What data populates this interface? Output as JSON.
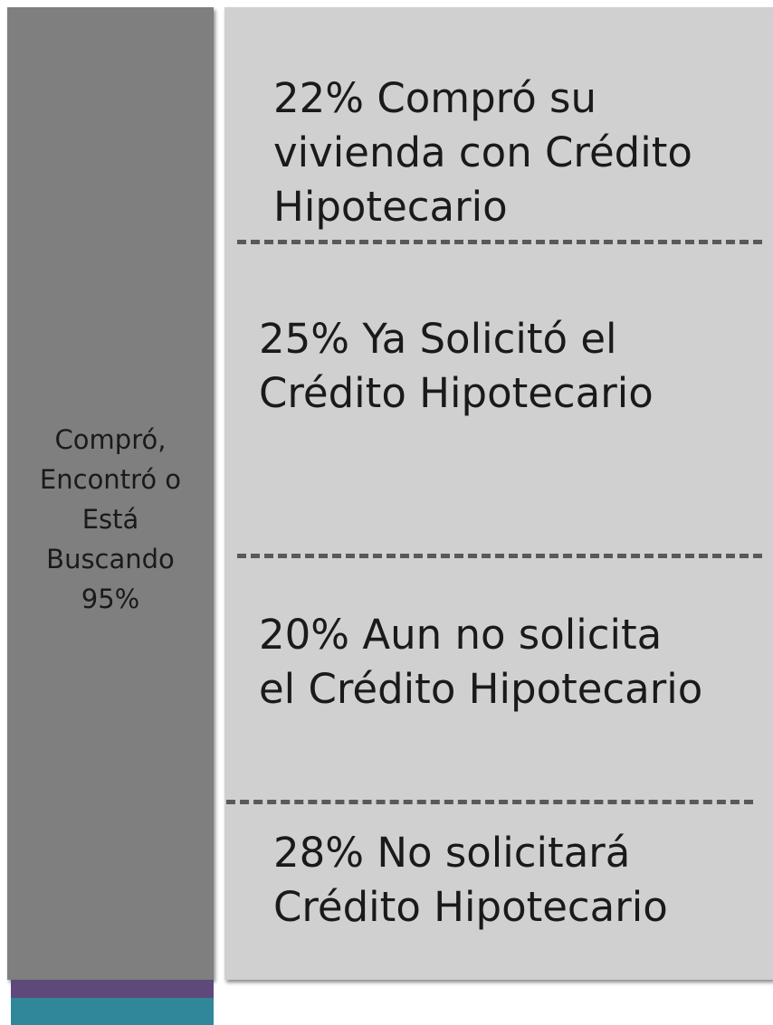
{
  "left_bar": {
    "lines": [
      "Compró,",
      "Encontró o",
      "Está",
      "Buscando",
      "95%"
    ]
  },
  "blocks": [
    {
      "lines": [
        "22% Compró su",
        "vivienda con Crédito",
        "Hipotecario"
      ]
    },
    {
      "lines": [
        "25% Ya Solicitó el",
        "Crédito Hipotecario"
      ]
    },
    {
      "lines": [
        "20% Aun no solicita",
        "el Crédito Hipotecario"
      ]
    },
    {
      "lines": [
        "28% No solicitará",
        "Crédito Hipotecario"
      ]
    }
  ]
}
